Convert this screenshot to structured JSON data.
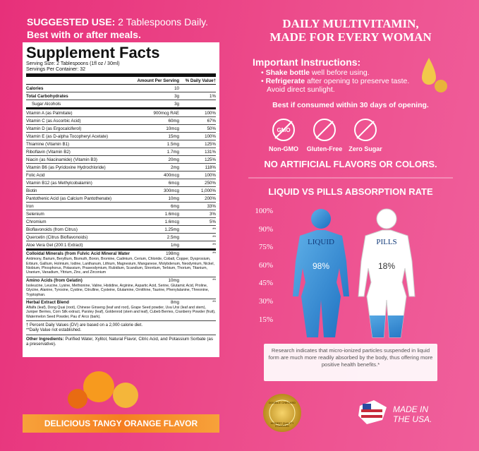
{
  "suggested_use": {
    "label": "SUGGESTED USE:",
    "dose": "2 Tablespoons Daily.",
    "note": "Best with or after meals."
  },
  "supplement_facts": {
    "title": "Supplement Facts",
    "serving_size": "Serving Size: 2 Tablespoons (1fl oz / 30ml)",
    "servings": "Servings Per Container: 32",
    "header_amount": "Amount Per Serving",
    "header_dv": "% Daily Value†",
    "top_rows": [
      [
        "Calories",
        "10"
      ],
      [
        "Total Carbohydrates",
        "3g",
        "1%"
      ],
      [
        "Sugar Alcohols",
        "3g"
      ]
    ],
    "rows": [
      [
        "Vitamin A (as Palmitate)",
        "900mcg RAE",
        "100%"
      ],
      [
        "Vitamin C (as Ascorbic Acid)",
        "60mg",
        "67%"
      ],
      [
        "Vitamin D (as Ergocalciferol)",
        "10mcg",
        "50%"
      ],
      [
        "Vitamin E (as D-alpha Tocopheryl Acetate)",
        "15mg",
        "100%"
      ],
      [
        "Thiamine (Vitamin B1)",
        "1.5mg",
        "125%"
      ],
      [
        "Riboflavin (Vitamin B2)",
        "1.7mg",
        "131%"
      ],
      [
        "Niacin (as Niacinamide) (Vitamin B3)",
        "20mg",
        "125%"
      ],
      [
        "Vitamin B6 (as Pyridoxine Hydrochloride)",
        "2mg",
        "118%"
      ],
      [
        "Folic Acid",
        "400mcg",
        "100%"
      ],
      [
        "Vitamin B12 (as Methylcobalamin)",
        "6mcg",
        "250%"
      ],
      [
        "Biotin",
        "300mcg",
        "1,000%"
      ],
      [
        "Pantothenic Acid (as Calcium Pantothenate)",
        "10mg",
        "200%"
      ],
      [
        "Iron",
        "6mg",
        "33%"
      ],
      [
        "Selenium",
        "1.6mcg",
        "3%"
      ],
      [
        "Chromium",
        "1.6mcg",
        "5%"
      ],
      [
        "Bioflavonoids (from Citrus)",
        "1.25mg",
        "**"
      ],
      [
        "Quercetin (Citrus Bioflavonoids)",
        "2.5mg",
        "**"
      ],
      [
        "Aloe Vera Gel (200:1 Extract)",
        "1mg",
        "**"
      ]
    ],
    "blends": [
      {
        "name": "Colloidal Minerals (from Fulvic Acid Mineral Water)",
        "amount": "198mg",
        "dv": "**",
        "ingredients": "Antimony, Barium, Beryllium, Bismuth, Boron, Bromine, Cadmium, Cerium, Chloride, Cobalt, Copper, Dysprosium, Erbium, Gallium, Holmium, Iodine, Lanthanum, Lithium, Magnesium, Manganese, Molybdenum, Neodymium, Nickel, Niobium, Phosphorus, Potassium, Praseodymium, Rubidium, Scandium, Strontium, Terbium, Thorium, Titanium, Uranium, Vanadium, Yttrium, Zinc, and Zirconium"
      },
      {
        "name": "Amino Acids (from Gelatin)",
        "amount": "10mg",
        "dv": "**",
        "ingredients": "Isoleucine, Leucine, Lysine, Methionine, Valine, Histidine, Arginine, Aspartic Acid, Serine, Glutamic Acid, Proline, Glycine, Alanine, Tyrosine, Cystine, Citrulline, Cysteine, Glutamine, Ornithine, Taurine, Phenylalanine, Threonine, Tryptophan."
      },
      {
        "name": "Herbal Extract Blend",
        "amount": "8mg",
        "dv": "**",
        "ingredients": "Alfalfa (leaf), Dong Quai (root), Chinese Ginseng (leaf and root), Grape Seed powder, Uva Ursi (leaf and stem), Juniper Berries, Corn Silk extract, Parsley (leaf), Goldenrod (stem and leaf), Cubeb Berries, Cranberry Powder (fruit), Watermelon Seed Powder, Pau d' Arco (bark)."
      }
    ],
    "footnotes": [
      "† Percent Daily Values (DV) are based on a 2,000 calorie diet.",
      "**Daily Value not established."
    ],
    "other_label": "Other Ingredients:",
    "other": "Purified Water, Xylitol, Natural Flavor, Citric Acid, and Potassium Sorbate (as a preservative)."
  },
  "flavor": "DELICIOUS TANGY ORANGE FLAVOR",
  "headline": [
    "DAILY MULTIVITAMIN,",
    "MADE FOR EVERY WOMAN"
  ],
  "instructions": {
    "title": "Important Instructions:",
    "items": [
      {
        "bold": "Shake bottle",
        "text": "well before using."
      },
      {
        "bold": "Refrigerate",
        "text": "after opening to preserve taste. Avoid direct sunlight."
      }
    ],
    "best": "Best if consumed within 30 days of opening."
  },
  "badges": [
    {
      "icon": "GMO",
      "label": "Non-GMO"
    },
    {
      "label": "Gluten-Free"
    },
    {
      "label": "Zero Sugar"
    }
  ],
  "no_artificial": "NO ARTIFICIAL FLAVORS OR COLORS.",
  "absorption": {
    "title": "LIQUID VS PILLS ABSORPTION RATE",
    "scale": [
      "100%",
      "90%",
      "75%",
      "60%",
      "45%",
      "30%",
      "15%"
    ],
    "liquid": {
      "name": "LIQUID",
      "rate": "98%"
    },
    "pills": {
      "name": "PILLS",
      "rate": "18%"
    },
    "note": "Research indicates that micro-ionized particles suspended in liquid form are much more readily absorbed by the body, thus offering more positive health benefits.*"
  },
  "seal": [
    "DOUBLE CHECKED",
    "HIGHEST QUALITY STANDARD"
  ],
  "made_in": [
    "MADE IN",
    "THE USA."
  ]
}
